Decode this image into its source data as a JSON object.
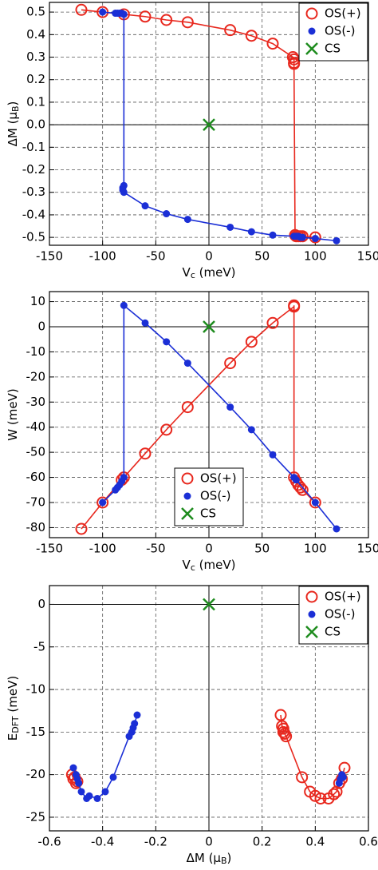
{
  "chart_data": [
    {
      "type": "line",
      "xlabel": [
        "V",
        "c",
        " (meV)"
      ],
      "ylabel": [
        "ΔM (μ",
        "B",
        ")"
      ],
      "xlim": [
        -150,
        150
      ],
      "xticks": [
        -150,
        -100,
        -50,
        0,
        50,
        100,
        150
      ],
      "ylim": [
        -0.535,
        0.543
      ],
      "yticks": [
        0.5,
        0.4,
        0.3,
        0.2,
        0.1,
        {
          "value": 0,
          "label": "0.0"
        },
        -0.1,
        -0.2,
        -0.3,
        -0.4,
        -0.5
      ],
      "grid": true,
      "zero_lines": true,
      "legend_loc": "upper right",
      "series": [
        {
          "name": "OS(+)",
          "color": "#e8281e",
          "marker": "open-circle",
          "x": [
            -120,
            -100,
            -80,
            -60,
            -40,
            -20,
            20,
            40,
            60,
            79,
            80,
            80,
            80,
            81,
            82,
            84,
            86,
            88,
            100
          ],
          "values": [
            0.51,
            0.5,
            0.49,
            0.48,
            0.465,
            0.455,
            0.42,
            0.395,
            0.36,
            0.3,
            0.29,
            0.275,
            0.27,
            -0.49,
            -0.495,
            -0.495,
            -0.495,
            -0.495,
            -0.5
          ]
        },
        {
          "name": "OS(-)",
          "color": "#1b2fd6",
          "marker": "dot",
          "x": [
            -100,
            -88,
            -86,
            -84,
            -82,
            -80,
            -80,
            -81,
            -81,
            -80,
            -60,
            -40,
            -20,
            20,
            40,
            60,
            80,
            82,
            84,
            86,
            88,
            100,
            120
          ],
          "values": [
            0.5,
            0.495,
            0.495,
            0.495,
            0.495,
            0.49,
            -0.27,
            -0.28,
            -0.29,
            -0.3,
            -0.36,
            -0.395,
            -0.42,
            -0.455,
            -0.475,
            -0.49,
            -0.495,
            -0.495,
            -0.495,
            -0.5,
            -0.5,
            -0.505,
            -0.515
          ]
        },
        {
          "name": "CS",
          "color": "#1e8c1e",
          "marker": "cross",
          "x": [
            0
          ],
          "values": [
            0
          ]
        }
      ]
    },
    {
      "type": "line",
      "xlabel": [
        "V",
        "c",
        " (meV)"
      ],
      "ylabel": [
        "W (meV)"
      ],
      "xlim": [
        -150,
        150
      ],
      "xticks": [
        -150,
        -100,
        -50,
        0,
        50,
        100,
        150
      ],
      "ylim": [
        -84,
        14
      ],
      "yticks": [
        10,
        0,
        -10,
        -20,
        -30,
        -40,
        -50,
        -60,
        -70,
        -80
      ],
      "grid": true,
      "zero_lines": true,
      "legend_loc": "lower center",
      "series": [
        {
          "name": "OS(+)",
          "color": "#e8281e",
          "marker": "open-circle",
          "x": [
            -120,
            -100,
            -82,
            -80,
            -60,
            -40,
            -20,
            20,
            40,
            60,
            80,
            80,
            80,
            82,
            84,
            86,
            88,
            100
          ],
          "values": [
            -80.5,
            -70,
            -61,
            -60,
            -50.5,
            -41,
            -32,
            -14.5,
            -6,
            1.5,
            8,
            8.5,
            -60,
            -61.5,
            -63,
            -64,
            -65,
            -70
          ]
        },
        {
          "name": "OS(-)",
          "color": "#1b2fd6",
          "marker": "dot",
          "x": [
            -100,
            -88,
            -86,
            -84,
            -82,
            -80,
            -80,
            -60,
            -40,
            -20,
            20,
            40,
            60,
            80,
            82,
            100,
            120
          ],
          "values": [
            -70,
            -65,
            -64,
            -63,
            -61.5,
            -60,
            8.5,
            1.5,
            -6,
            -14.5,
            -32,
            -41,
            -51,
            -60,
            -61,
            -70,
            -80.5
          ]
        },
        {
          "name": "CS",
          "color": "#1e8c1e",
          "marker": "cross",
          "x": [
            0
          ],
          "values": [
            0
          ]
        }
      ]
    },
    {
      "type": "line",
      "xlabel": [
        "ΔM (μ",
        "B",
        ")"
      ],
      "ylabel": [
        "E",
        "DFT",
        " (meV)"
      ],
      "xlim": [
        -0.6,
        0.6
      ],
      "xticks": [
        -0.6,
        -0.4,
        -0.2,
        0,
        0.2,
        0.4,
        0.6
      ],
      "ylim": [
        -26.6,
        2.2
      ],
      "yticks": [
        0,
        -5,
        -10,
        -15,
        -20,
        -25
      ],
      "grid": true,
      "zero_lines": true,
      "legend_loc": "upper right",
      "series": [
        {
          "name": "OS(+)",
          "color": "#e8281e",
          "marker": "open-circle",
          "x": [
            -0.515,
            -0.51,
            -0.505,
            -0.5,
            -0.495,
            null,
            0.27,
            0.275,
            0.28,
            0.28,
            0.285,
            0.29,
            0.35,
            0.38,
            0.4,
            0.42,
            0.45,
            0.47,
            0.48,
            0.49,
            0.5,
            0.51
          ],
          "values": [
            -20,
            -20.5,
            -20.3,
            -21,
            -20.8,
            null,
            -13,
            -14.3,
            -14.6,
            -15,
            -15.2,
            -15.5,
            -20.3,
            -22,
            -22.5,
            -22.8,
            -22.8,
            -22.3,
            -22,
            -21,
            -20.5,
            -19.2
          ]
        },
        {
          "name": "OS(-)",
          "color": "#1b2fd6",
          "marker": "dot",
          "x": [
            -0.27,
            -0.28,
            -0.285,
            -0.29,
            -0.3,
            -0.36,
            -0.39,
            -0.42,
            -0.45,
            -0.46,
            -0.48,
            -0.49,
            -0.495,
            -0.5,
            -0.51,
            null,
            0.49,
            0.495,
            0.5,
            0.505
          ],
          "values": [
            -13,
            -14,
            -14.5,
            -15,
            -15.5,
            -20.3,
            -22,
            -22.8,
            -22.5,
            -22.8,
            -22,
            -21,
            -20.5,
            -20,
            -19.2,
            null,
            -21,
            -20.5,
            -20,
            -20.3
          ]
        },
        {
          "name": "CS",
          "color": "#1e8c1e",
          "marker": "cross",
          "x": [
            0
          ],
          "values": [
            0
          ]
        }
      ]
    }
  ]
}
